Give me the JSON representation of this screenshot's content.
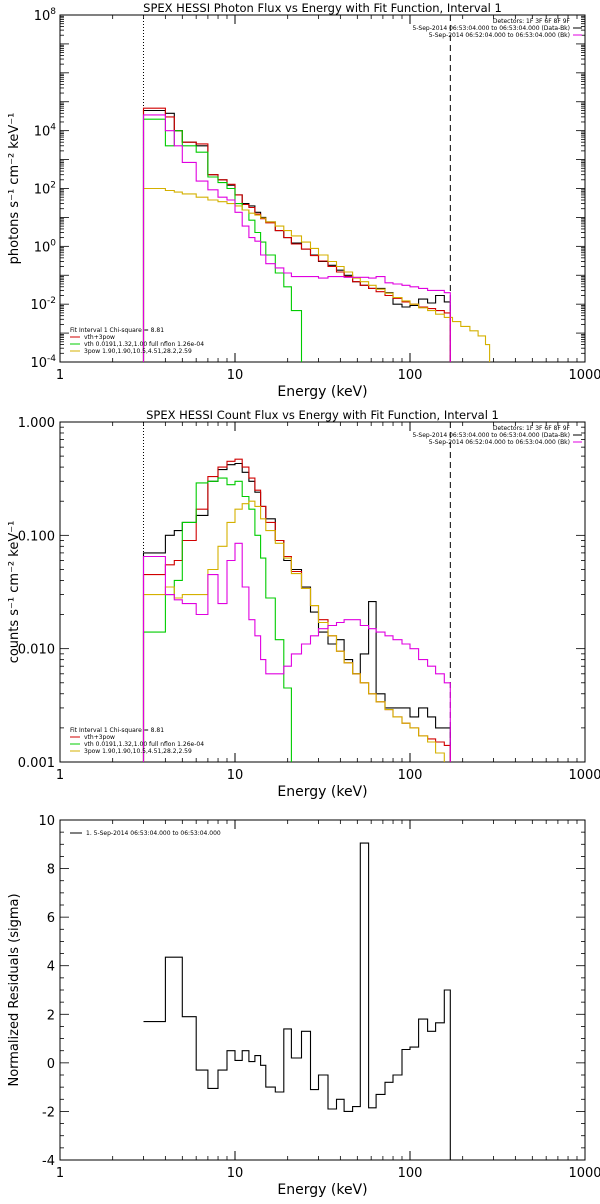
{
  "chart_data": [
    {
      "type": "line",
      "title": "SPEX HESSI Photon Flux vs Energy with Fit Function, Interval 1",
      "xlabel": "Energy (keV)",
      "ylabel": "photons s⁻¹ cm⁻² keV⁻¹",
      "xscale": "log",
      "yscale": "log",
      "xlim": [
        1,
        1000
      ],
      "ylim": [
        0.0001,
        100000000
      ],
      "xticks": [
        {
          "v": 1,
          "label": "1"
        },
        {
          "v": 10,
          "label": "10"
        },
        {
          "v": 100,
          "label": "100"
        },
        {
          "v": 1000,
          "label": "1000"
        }
      ],
      "yticks": [
        {
          "v": 0.0001,
          "label": "10",
          "sup": "-4"
        },
        {
          "v": 0.01,
          "label": "10",
          "sup": "-2"
        },
        {
          "v": 1,
          "label": "10",
          "sup": "0"
        },
        {
          "v": 100,
          "label": "10",
          "sup": "2"
        },
        {
          "v": 10000,
          "label": "10",
          "sup": "4"
        },
        {
          "v": 100000000,
          "label": "10",
          "sup": "8"
        }
      ],
      "vlines": [
        {
          "x": 3,
          "style": "dotted"
        },
        {
          "x": 170,
          "style": "dashed"
        }
      ],
      "header_lines": [
        "Detectors: 1F 3F 6F 8F 9F",
        "5-Sep-2014 06:53:04.000 to 06:53:04.000 (Data-Bk)",
        "5-Sep-2014 06:52:04.000 to 06:53:04.000 (Bk)"
      ],
      "legend": {
        "title": "Fit Interval 1    Chi-square = 8.81",
        "entries": [
          {
            "label": "vth+3pow",
            "color": "#d00000"
          },
          {
            "label": "vth 0.0191,1.32,1.00  full nflon 1.26e-04",
            "color": "#00cc00"
          },
          {
            "label": "3pow 1.90,1.90,10.5,4.51,28.2,2.59",
            "color": "#d4b000"
          }
        ]
      },
      "series": [
        {
          "name": "Data-Bk",
          "color": "#000000",
          "x": [
            3,
            3.5,
            4,
            4.5,
            5,
            6,
            7,
            8,
            9,
            10,
            11,
            12,
            13,
            14,
            15,
            17,
            19,
            21,
            24,
            27,
            30,
            34,
            38,
            42,
            47,
            52,
            58,
            64,
            72,
            80,
            90,
            100,
            112,
            126,
            140,
            157,
            170
          ],
          "y": [
            50000,
            50000,
            40000,
            10000,
            4000,
            3000,
            300,
            200,
            130,
            60,
            30,
            25,
            15,
            10,
            7,
            3.5,
            2,
            1.3,
            0.8,
            0.5,
            0.3,
            0.22,
            0.15,
            0.1,
            0.06,
            0.045,
            0.035,
            0.035,
            0.025,
            0.01,
            0.008,
            0.009,
            0.015,
            0.011,
            0.02,
            0.012,
            0.009
          ]
        },
        {
          "name": "vth+3pow",
          "color": "#d00000",
          "x": [
            3,
            3.5,
            4,
            4.5,
            5,
            6,
            7,
            8,
            9,
            10,
            11,
            12,
            13,
            14,
            15,
            17,
            19,
            21,
            24,
            27,
            30,
            34,
            38,
            42,
            47,
            52,
            58,
            64,
            72,
            80,
            90,
            100,
            112,
            126,
            140,
            157,
            170
          ],
          "y": [
            60000,
            60000,
            30000,
            10000,
            4000,
            3500,
            300,
            200,
            140,
            60,
            28,
            22,
            13,
            9,
            6.5,
            3.5,
            2,
            1.2,
            0.8,
            0.48,
            0.31,
            0.2,
            0.13,
            0.09,
            0.06,
            0.045,
            0.035,
            0.027,
            0.02,
            0.016,
            0.012,
            0.01,
            0.008,
            0.007,
            0.006,
            0.005,
            0.004
          ]
        },
        {
          "name": "vth",
          "color": "#00cc00",
          "x": [
            3,
            3.5,
            4,
            4.5,
            5,
            6,
            7,
            8,
            9,
            10,
            11,
            12,
            13,
            14,
            15,
            17,
            19,
            21,
            24
          ],
          "y": [
            25000,
            25000,
            3000,
            10000,
            3000,
            1800,
            250,
            160,
            100,
            30,
            18,
            8,
            3,
            1.4,
            0.5,
            0.12,
            0.04,
            0.006,
            0.0006
          ]
        },
        {
          "name": "3pow",
          "color": "#d4b000",
          "x": [
            3,
            3.5,
            4,
            4.5,
            5,
            6,
            7,
            8,
            9,
            10,
            11,
            12,
            13,
            14,
            15,
            17,
            19,
            21,
            24,
            27,
            30,
            34,
            38,
            42,
            47,
            52,
            58,
            64,
            72,
            80,
            90,
            100,
            112,
            126,
            140,
            157,
            175,
            195,
            220,
            245,
            270,
            285
          ],
          "y": [
            100,
            100,
            85,
            75,
            65,
            50,
            40,
            35,
            30,
            25,
            18,
            14,
            12,
            9.5,
            7,
            5,
            3.5,
            2.3,
            1.4,
            0.85,
            0.5,
            0.3,
            0.2,
            0.13,
            0.08,
            0.06,
            0.045,
            0.033,
            0.024,
            0.017,
            0.013,
            0.01,
            0.0075,
            0.006,
            0.0045,
            0.0035,
            0.0025,
            0.0017,
            0.0012,
            0.0008,
            0.0004,
            5e-05
          ]
        },
        {
          "name": "Bk",
          "color": "#e000e0",
          "x": [
            3,
            3.5,
            4,
            4.5,
            5,
            6,
            7,
            8,
            9,
            10,
            11,
            12,
            13,
            14,
            15,
            17,
            19,
            21,
            24,
            27,
            30,
            34,
            38,
            42,
            47,
            52,
            58,
            64,
            72,
            80,
            90,
            100,
            112,
            126,
            140,
            157,
            170
          ],
          "y": [
            35000,
            35000,
            10000,
            3000,
            800,
            180,
            90,
            50,
            40,
            15,
            5,
            2,
            1.5,
            0.5,
            0.25,
            0.18,
            0.12,
            0.09,
            0.09,
            0.09,
            0.08,
            0.09,
            0.09,
            0.085,
            0.085,
            0.085,
            0.08,
            0.09,
            0.055,
            0.05,
            0.045,
            0.04,
            0.035,
            0.03,
            0.03,
            0.025,
            0.025
          ]
        }
      ]
    },
    {
      "type": "line",
      "title": "SPEX HESSI Count Flux vs Energy with Fit Function, Interval 1",
      "xlabel": "Energy (keV)",
      "ylabel": "counts s⁻¹ cm⁻² keV⁻¹",
      "xscale": "log",
      "yscale": "log",
      "xlim": [
        1,
        1000
      ],
      "ylim": [
        0.001,
        1
      ],
      "xticks": [
        {
          "v": 1,
          "label": "1"
        },
        {
          "v": 10,
          "label": "10"
        },
        {
          "v": 100,
          "label": "100"
        },
        {
          "v": 1000,
          "label": "1000"
        }
      ],
      "yticks": [
        {
          "v": 0.001,
          "label": "0.001"
        },
        {
          "v": 0.01,
          "label": "0.010"
        },
        {
          "v": 0.1,
          "label": "0.100"
        },
        {
          "v": 1,
          "label": "1.000"
        }
      ],
      "vlines": [
        {
          "x": 3,
          "style": "dotted"
        },
        {
          "x": 170,
          "style": "dashed"
        }
      ],
      "header_lines": [
        "Detectors: 1F 3F 6F 8F 9F",
        "5-Sep-2014 06:53:04.000 to 06:53:04.000 (Data-Bk)",
        "5-Sep-2014 06:52:04.000 to 06:53:04.000 (Bk)"
      ],
      "legend": {
        "title": "Fit Interval 1    Chi-square = 8.81",
        "entries": [
          {
            "label": "vth+3pow",
            "color": "#d00000"
          },
          {
            "label": "vth 0.0191,1.32,1.00  full nflon 1.26e-04",
            "color": "#00cc00"
          },
          {
            "label": "3pow 1.90,1.90,10.5,4.51,28.2,2.59",
            "color": "#d4b000"
          }
        ]
      },
      "series": [
        {
          "name": "Data-Bk",
          "color": "#000000",
          "x": [
            3,
            3.5,
            4,
            4.5,
            5,
            6,
            7,
            8,
            9,
            10,
            11,
            12,
            13,
            14,
            15,
            17,
            19,
            21,
            24,
            27,
            30,
            34,
            38,
            42,
            47,
            52,
            58,
            64,
            72,
            80,
            90,
            100,
            112,
            126,
            140,
            157,
            170
          ],
          "y": [
            0.07,
            0.07,
            0.1,
            0.11,
            0.13,
            0.15,
            0.3,
            0.38,
            0.42,
            0.43,
            0.36,
            0.3,
            0.24,
            0.18,
            0.14,
            0.09,
            0.06,
            0.05,
            0.035,
            0.021,
            0.014,
            0.011,
            0.012,
            0.008,
            0.006,
            0.009,
            0.026,
            0.004,
            0.003,
            0.003,
            0.003,
            0.0025,
            0.003,
            0.0025,
            0.002,
            0.002,
            0.002
          ]
        },
        {
          "name": "vth+3pow",
          "color": "#d00000",
          "x": [
            3,
            3.5,
            4,
            4.5,
            5,
            6,
            7,
            8,
            9,
            10,
            11,
            12,
            13,
            14,
            15,
            17,
            19,
            21,
            24,
            27,
            30,
            34,
            38,
            42,
            47,
            52,
            58,
            64,
            72,
            80,
            90,
            100,
            112,
            126,
            140,
            157,
            170
          ],
          "y": [
            0.045,
            0.045,
            0.055,
            0.06,
            0.09,
            0.17,
            0.33,
            0.4,
            0.45,
            0.47,
            0.4,
            0.32,
            0.25,
            0.18,
            0.13,
            0.09,
            0.065,
            0.048,
            0.034,
            0.024,
            0.018,
            0.013,
            0.0095,
            0.0075,
            0.006,
            0.005,
            0.004,
            0.0034,
            0.0029,
            0.0025,
            0.0022,
            0.002,
            0.0017,
            0.0016,
            0.0015,
            0.0014,
            0.0013
          ]
        },
        {
          "name": "vth",
          "color": "#00cc00",
          "x": [
            3,
            3.5,
            4,
            4.5,
            5,
            6,
            7,
            8,
            9,
            10,
            11,
            12,
            13,
            14,
            15,
            17,
            19,
            21
          ],
          "y": [
            0.014,
            0.014,
            0.03,
            0.04,
            0.13,
            0.29,
            0.3,
            0.32,
            0.28,
            0.3,
            0.22,
            0.17,
            0.1,
            0.063,
            0.028,
            0.012,
            0.0045,
            0.0005
          ]
        },
        {
          "name": "3pow",
          "color": "#d4b000",
          "x": [
            3,
            3.5,
            4,
            4.5,
            5,
            6,
            7,
            8,
            9,
            10,
            11,
            12,
            13,
            14,
            15,
            17,
            19,
            21,
            24,
            27,
            30,
            34,
            38,
            42,
            47,
            52,
            58,
            64,
            72,
            80,
            90,
            100,
            112,
            126,
            140,
            157
          ],
          "y": [
            0.03,
            0.03,
            0.035,
            0.028,
            0.03,
            0.03,
            0.05,
            0.08,
            0.13,
            0.17,
            0.19,
            0.2,
            0.18,
            0.14,
            0.11,
            0.085,
            0.063,
            0.046,
            0.034,
            0.024,
            0.017,
            0.013,
            0.0095,
            0.0075,
            0.006,
            0.005,
            0.004,
            0.0034,
            0.0029,
            0.0025,
            0.0022,
            0.002,
            0.0017,
            0.0015,
            0.0012,
            0.0004
          ]
        },
        {
          "name": "Bk",
          "color": "#e000e0",
          "x": [
            3,
            3.5,
            4,
            4.5,
            5,
            6,
            7,
            8,
            9,
            10,
            11,
            12,
            13,
            14,
            15,
            17,
            19,
            21,
            24,
            27,
            30,
            34,
            38,
            42,
            47,
            52,
            58,
            64,
            72,
            80,
            90,
            100,
            112,
            126,
            140,
            157,
            170
          ],
          "y": [
            0.065,
            0.065,
            0.03,
            0.027,
            0.025,
            0.02,
            0.045,
            0.025,
            0.06,
            0.085,
            0.035,
            0.018,
            0.013,
            0.008,
            0.006,
            0.006,
            0.007,
            0.009,
            0.011,
            0.013,
            0.015,
            0.016,
            0.017,
            0.018,
            0.018,
            0.016,
            0.015,
            0.014,
            0.013,
            0.012,
            0.011,
            0.01,
            0.008,
            0.007,
            0.006,
            0.005,
            0.004
          ]
        }
      ]
    },
    {
      "type": "line",
      "title": "",
      "xlabel": "Energy (keV)",
      "ylabel": "Normalized Residuals (sigma)",
      "xscale": "log",
      "yscale": "linear",
      "xlim": [
        1,
        1000
      ],
      "ylim": [
        -4,
        10
      ],
      "xticks": [
        {
          "v": 1,
          "label": "1"
        },
        {
          "v": 10,
          "label": "10"
        },
        {
          "v": 100,
          "label": "100"
        },
        {
          "v": 1000,
          "label": "1000"
        }
      ],
      "yticks": [
        {
          "v": -4,
          "label": "-4"
        },
        {
          "v": -2,
          "label": "-2"
        },
        {
          "v": 0,
          "label": "0"
        },
        {
          "v": 2,
          "label": "2"
        },
        {
          "v": 4,
          "label": "4"
        },
        {
          "v": 6,
          "label": "6"
        },
        {
          "v": 8,
          "label": "8"
        },
        {
          "v": 10,
          "label": "10"
        }
      ],
      "legend": {
        "title": "",
        "entries": [
          {
            "label": "1.  5-Sep-2014 06:53:04.000 to 06:53:04.000",
            "color": "#000000"
          }
        ]
      },
      "series": [
        {
          "name": "1.  5-Sep-2014 06:53:04.000 to 06:53:04.000",
          "color": "#000000",
          "x": [
            3,
            3.5,
            4,
            4.5,
            5,
            6,
            7,
            8,
            9,
            10,
            11,
            12,
            13,
            14,
            15,
            17,
            19,
            21,
            24,
            27,
            30,
            34,
            38,
            42,
            47,
            52,
            58,
            64,
            72,
            80,
            90,
            100,
            112,
            126,
            140,
            157,
            170
          ],
          "y": [
            1.7,
            1.7,
            4.35,
            4.35,
            1.9,
            -0.3,
            -1.05,
            -0.3,
            0.5,
            0.1,
            0.5,
            0.05,
            0.3,
            -0.1,
            -1.0,
            -1.2,
            1.4,
            0.2,
            1.3,
            -1.1,
            -0.5,
            -1.9,
            -1.5,
            -2.0,
            -1.8,
            9.05,
            -1.85,
            -1.3,
            -0.8,
            -0.5,
            0.55,
            0.65,
            1.8,
            1.3,
            1.65,
            3.0,
            -4.1
          ]
        }
      ]
    }
  ]
}
